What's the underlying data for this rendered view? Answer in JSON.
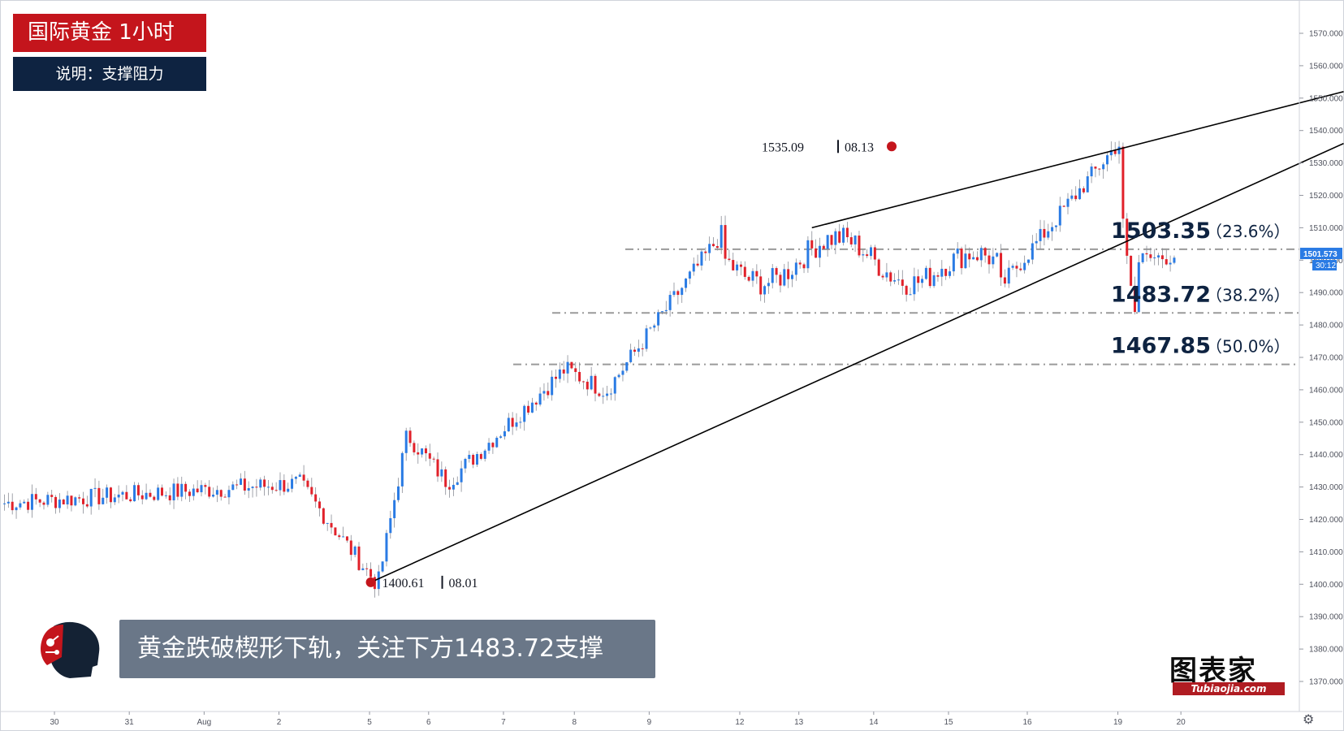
{
  "header": {
    "title": "国际黄金 1小时",
    "subtitle": "说明：支撑阻力"
  },
  "caption": {
    "text": "黄金跌破楔形下轨，关注下方1483.72支撑"
  },
  "brand": {
    "name": "图表家",
    "url": "Tubiaojia.com"
  },
  "colors": {
    "up": "#2a7be4",
    "down": "#e1212a",
    "fib_line": "#9a9a9a",
    "trend_line": "#000000",
    "marker": "#c4151c",
    "title_bg": "#c4151c",
    "subtitle_bg": "#0e2341",
    "caption_bg": "#6a7788",
    "price_badge": "#2a7be4"
  },
  "chart_data": {
    "type": "candlestick",
    "title": "国际黄金 1小时",
    "ylim": [
      1365,
      1575
    ],
    "y_ticks": [
      "1370.000",
      "1380.000",
      "1390.000",
      "1400.000",
      "1410.000",
      "1420.000",
      "1430.000",
      "1440.000",
      "1450.000",
      "1460.000",
      "1470.000",
      "1480.000",
      "1490.000",
      "1500.000",
      "1510.000",
      "1520.000",
      "1530.000",
      "1540.000",
      "1550.000",
      "1560.000",
      "1570.000"
    ],
    "x_ticks": [
      "30",
      "31",
      "Aug",
      "2",
      "5",
      "6",
      "7",
      "8",
      "9",
      "12",
      "13",
      "14",
      "15",
      "16",
      "19",
      "20"
    ],
    "current_price": {
      "value": "1501.573",
      "countdown": "30:12"
    },
    "points": [
      {
        "label_price": "1535.09",
        "label_date": "08.13",
        "value": 1535.09
      },
      {
        "label_price": "1400.61",
        "label_date": "08.01",
        "value": 1400.61
      }
    ],
    "fib_levels": [
      {
        "price": "1503.35",
        "pct": "（23.6%）",
        "value": 1503.35
      },
      {
        "price": "1483.72",
        "pct": "（38.2%）",
        "value": 1483.72
      },
      {
        "price": "1467.85",
        "pct": "（50.0%）",
        "value": 1467.85
      }
    ],
    "wedge_lines": [
      {
        "name": "upper",
        "from": {
          "bar": 205,
          "price": 1510
        },
        "to": {
          "bar": 340,
          "price": 1552
        }
      },
      {
        "name": "lower",
        "from": {
          "bar": 93,
          "price": 1400.61
        },
        "to": {
          "bar": 340,
          "price": 1536
        }
      }
    ],
    "series": [
      {
        "segment": "late-jul",
        "bars": 75,
        "from": 1425,
        "to": 1431
      },
      {
        "segment": "drop-to-low",
        "bars": 20,
        "from": 1431,
        "to": 1401
      },
      {
        "segment": "rally-aug-2",
        "bars": 8,
        "from": 1401,
        "to": 1445
      },
      {
        "segment": "pullback",
        "bars": 10,
        "from": 1445,
        "to": 1432
      },
      {
        "segment": "rise-aug-5",
        "bars": 30,
        "from": 1432,
        "to": 1466
      },
      {
        "segment": "pullback-aug-6",
        "bars": 10,
        "from": 1466,
        "to": 1460
      },
      {
        "segment": "rise-aug-7",
        "bars": 30,
        "from": 1460,
        "to": 1508
      },
      {
        "segment": "range-aug-8-12",
        "bars": 70,
        "from": 1503,
        "to": 1490
      },
      {
        "segment": "rise-to-high",
        "bars": 30,
        "from": 1492,
        "to": 1535
      },
      {
        "segment": "crash",
        "bars": 5,
        "from": 1535,
        "to": 1484
      },
      {
        "segment": "recovery",
        "bars": 10,
        "from": 1500,
        "to": 1501.5
      }
    ]
  }
}
